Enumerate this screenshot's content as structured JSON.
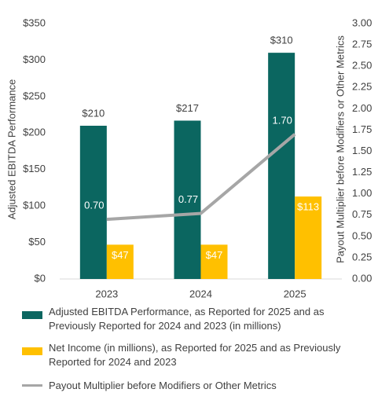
{
  "chart_data": {
    "type": "bar-line",
    "y_label": "Adjusted EBITDA Performance",
    "y2_label": "Payout Multiplier before Modifiers or Other Metrics",
    "categories": [
      "2023",
      "2024",
      "2025"
    ],
    "series": [
      {
        "name": "Adjusted EBITDA Performance, as Reported for 2025 and as Previously Reported for 2024 and 2023 (in millions)",
        "type": "bar",
        "color": "#0b6660",
        "values": [
          210,
          217,
          310
        ],
        "value_labels": [
          "$210",
          "$217",
          "$310"
        ]
      },
      {
        "name": "Net Income (in millions), as Reported for 2025 and as Previously Reported for 2024 and 2023",
        "type": "bar",
        "color": "#ffc000",
        "values": [
          47,
          47,
          113
        ],
        "value_labels": [
          "$47",
          "$47",
          "$113"
        ]
      },
      {
        "name": "Payout Multiplier before Modifiers or Other Metrics",
        "type": "line",
        "axis": "y2",
        "color": "#a6a6a6",
        "values": [
          0.7,
          0.77,
          1.7
        ],
        "value_labels": [
          "0.70",
          "0.77",
          "1.70"
        ]
      }
    ],
    "ylim": [
      0,
      350
    ],
    "yticks": [
      {
        "value": 0,
        "label": "$0"
      },
      {
        "value": 50,
        "label": "$50"
      },
      {
        "value": 100,
        "label": "$100"
      },
      {
        "value": 150,
        "label": "$150"
      },
      {
        "value": 200,
        "label": "$200"
      },
      {
        "value": 250,
        "label": "$250"
      },
      {
        "value": 300,
        "label": "$300"
      },
      {
        "value": 350,
        "label": "$350"
      }
    ],
    "y2lim": [
      0,
      3
    ],
    "y2ticks": [
      {
        "value": 0,
        "label": "0.00"
      },
      {
        "value": 0.25,
        "label": "0.25"
      },
      {
        "value": 0.5,
        "label": "0.50"
      },
      {
        "value": 0.75,
        "label": "0.75"
      },
      {
        "value": 1,
        "label": "1.00"
      },
      {
        "value": 1.25,
        "label": "1.25"
      },
      {
        "value": 1.5,
        "label": "1.50"
      },
      {
        "value": 1.75,
        "label": "1.75"
      },
      {
        "value": 2,
        "label": "2.00"
      },
      {
        "value": 2.25,
        "label": "2.25"
      },
      {
        "value": 2.5,
        "label": "2.50"
      },
      {
        "value": 2.75,
        "label": "2.75"
      },
      {
        "value": 3,
        "label": "3.00"
      }
    ],
    "grid": false
  }
}
